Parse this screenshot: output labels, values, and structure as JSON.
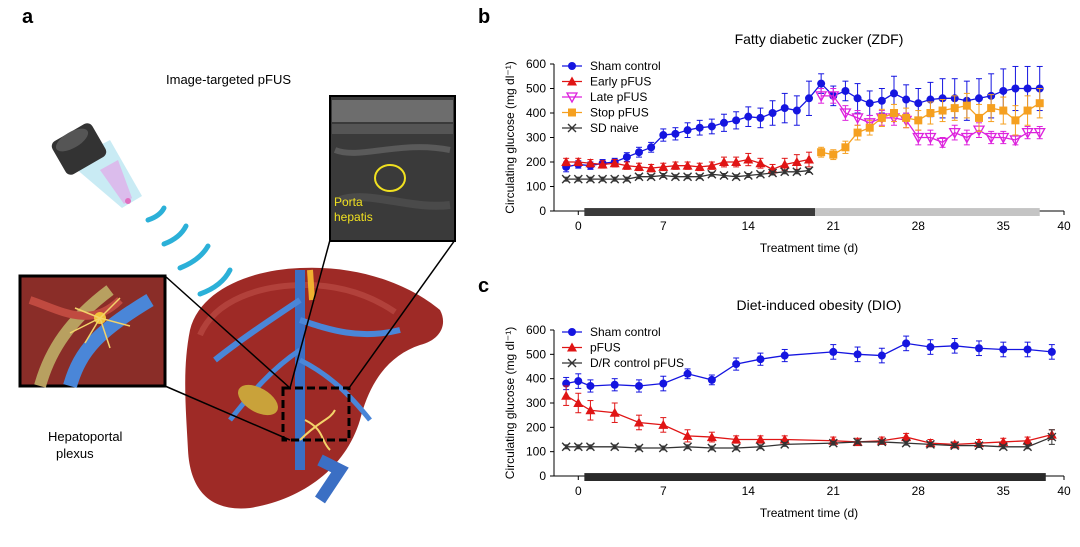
{
  "panel_a": {
    "letter": "a",
    "caption": "Image-targeted pFUS",
    "us_label_line1": "Porta",
    "us_label_line2": "hepatis",
    "plexus_line1": "Hepatoportal",
    "plexus_line2": "plexus"
  },
  "chart_data": [
    {
      "panel": "b",
      "type": "line",
      "title": "Fatty diabetic zucker (ZDF)",
      "xlabel": "Treatment time (d)",
      "ylabel": "Circulating glucose (mg dl⁻¹)",
      "xlim": [
        -2,
        40
      ],
      "ylim": [
        0,
        600
      ],
      "xticks": [
        0,
        7,
        14,
        21,
        28,
        35,
        40
      ],
      "yticks": [
        0,
        100,
        200,
        300,
        400,
        500,
        600
      ],
      "legend_position": "top-left",
      "treatment_bars": [
        {
          "x0": 0.5,
          "x1": 19.5,
          "color": "#3a3a3a"
        },
        {
          "x0": 19.5,
          "x1": 38,
          "color": "#c4c4c4"
        }
      ],
      "series": [
        {
          "name": "Sham control",
          "color": "#1515e0",
          "marker": "circle",
          "x": [
            -1,
            0,
            1,
            2,
            3,
            4,
            5,
            6,
            7,
            8,
            9,
            10,
            11,
            12,
            13,
            14,
            15,
            16,
            17,
            18,
            19,
            20,
            21,
            22,
            23,
            24,
            25,
            26,
            27,
            28,
            29,
            30,
            31,
            32,
            33,
            34,
            35,
            36,
            37,
            38
          ],
          "y": [
            180,
            190,
            185,
            195,
            200,
            220,
            240,
            260,
            310,
            315,
            330,
            340,
            345,
            360,
            370,
            385,
            380,
            400,
            420,
            410,
            460,
            520,
            470,
            490,
            460,
            440,
            450,
            480,
            455,
            440,
            455,
            460,
            460,
            450,
            460,
            470,
            490,
            500,
            500,
            500
          ],
          "err": [
            20,
            15,
            15,
            15,
            15,
            18,
            20,
            20,
            25,
            25,
            30,
            30,
            30,
            35,
            35,
            40,
            40,
            50,
            60,
            60,
            70,
            40,
            40,
            40,
            60,
            50,
            50,
            70,
            60,
            60,
            70,
            80,
            80,
            80,
            80,
            90,
            90,
            90,
            90,
            90
          ]
        },
        {
          "name": "Early pFUS",
          "color": "#e01515",
          "marker": "triangle-up",
          "x": [
            -1,
            0,
            1,
            2,
            3,
            4,
            5,
            6,
            7,
            8,
            9,
            10,
            11,
            12,
            13,
            14,
            15,
            16,
            17,
            18,
            19
          ],
          "y": [
            200,
            200,
            195,
            190,
            195,
            185,
            180,
            175,
            180,
            185,
            185,
            180,
            185,
            200,
            200,
            210,
            195,
            170,
            190,
            200,
            210
          ],
          "err": [
            15,
            15,
            15,
            15,
            15,
            15,
            15,
            15,
            15,
            15,
            15,
            15,
            15,
            20,
            20,
            25,
            20,
            20,
            25,
            30,
            30
          ]
        },
        {
          "name": "Late pFUS",
          "color": "#dd22dd",
          "marker": "triangle-down",
          "x": [
            20,
            21,
            22,
            23,
            24,
            25,
            26,
            27,
            28,
            29,
            30,
            31,
            32,
            33,
            34,
            35,
            36,
            37,
            38
          ],
          "y": [
            470,
            470,
            400,
            380,
            360,
            380,
            380,
            370,
            300,
            300,
            280,
            320,
            300,
            330,
            300,
            300,
            290,
            320,
            320
          ],
          "err": [
            30,
            30,
            30,
            30,
            30,
            30,
            30,
            30,
            30,
            30,
            20,
            30,
            30,
            30,
            25,
            25,
            20,
            25,
            25
          ]
        },
        {
          "name": "Stop pFUS",
          "color": "#f5a020",
          "marker": "square",
          "x": [
            20,
            21,
            22,
            23,
            24,
            25,
            26,
            27,
            28,
            29,
            30,
            31,
            32,
            33,
            34,
            35,
            36,
            37,
            38
          ],
          "y": [
            240,
            230,
            260,
            320,
            340,
            380,
            400,
            380,
            370,
            400,
            410,
            420,
            430,
            380,
            420,
            410,
            370,
            410,
            440
          ],
          "err": [
            20,
            20,
            25,
            30,
            30,
            35,
            35,
            40,
            40,
            45,
            45,
            50,
            50,
            55,
            55,
            55,
            60,
            60,
            60
          ]
        },
        {
          "name": "SD naive",
          "color": "#333333",
          "marker": "x",
          "x": [
            -1,
            0,
            1,
            2,
            3,
            4,
            5,
            6,
            7,
            8,
            9,
            10,
            11,
            12,
            13,
            14,
            15,
            16,
            17,
            18,
            19
          ],
          "y": [
            130,
            130,
            130,
            130,
            130,
            130,
            140,
            140,
            145,
            140,
            140,
            140,
            150,
            145,
            140,
            145,
            150,
            155,
            160,
            160,
            165
          ],
          "err": [
            8,
            8,
            8,
            8,
            8,
            8,
            8,
            8,
            8,
            8,
            8,
            8,
            8,
            8,
            8,
            8,
            8,
            8,
            8,
            8,
            8
          ]
        }
      ]
    },
    {
      "panel": "c",
      "type": "line",
      "title": "Diet-induced obesity (DIO)",
      "xlabel": "Treatment time (d)",
      "ylabel": "Circulating glucose (mg dl⁻¹)",
      "xlim": [
        -2,
        40
      ],
      "ylim": [
        0,
        600
      ],
      "xticks": [
        0,
        7,
        14,
        21,
        28,
        35,
        40
      ],
      "yticks": [
        0,
        100,
        200,
        300,
        400,
        500,
        600
      ],
      "legend_position": "top-left",
      "treatment_bars": [
        {
          "x0": 0.5,
          "x1": 38.5,
          "color": "#2a2a2a"
        }
      ],
      "series": [
        {
          "name": "Sham control",
          "color": "#1515e0",
          "marker": "circle",
          "x": [
            -1,
            0,
            1,
            3,
            5,
            7,
            9,
            11,
            13,
            15,
            17,
            21,
            23,
            25,
            27,
            29,
            31,
            33,
            35,
            37,
            39
          ],
          "y": [
            380,
            390,
            370,
            375,
            370,
            380,
            420,
            395,
            460,
            480,
            495,
            510,
            500,
            495,
            545,
            530,
            535,
            525,
            520,
            520,
            510
          ],
          "err": [
            25,
            30,
            25,
            25,
            25,
            30,
            20,
            20,
            25,
            25,
            25,
            30,
            30,
            30,
            30,
            30,
            30,
            30,
            30,
            30,
            30
          ]
        },
        {
          "name": "pFUS",
          "color": "#e01515",
          "marker": "triangle-up",
          "x": [
            -1,
            0,
            1,
            3,
            5,
            7,
            9,
            11,
            13,
            15,
            17,
            21,
            23,
            25,
            27,
            29,
            31,
            33,
            35,
            37,
            39
          ],
          "y": [
            330,
            300,
            270,
            260,
            220,
            210,
            165,
            160,
            150,
            150,
            150,
            145,
            140,
            145,
            160,
            135,
            130,
            135,
            140,
            145,
            170
          ],
          "err": [
            40,
            40,
            40,
            40,
            30,
            30,
            25,
            20,
            15,
            15,
            15,
            15,
            15,
            15,
            15,
            15,
            10,
            15,
            15,
            15,
            20
          ]
        },
        {
          "name": "D/R control pFUS",
          "color": "#333333",
          "marker": "x",
          "x": [
            -1,
            0,
            1,
            3,
            5,
            7,
            9,
            11,
            13,
            15,
            17,
            21,
            23,
            25,
            27,
            29,
            31,
            33,
            35,
            37,
            39
          ],
          "y": [
            120,
            120,
            120,
            120,
            115,
            115,
            120,
            115,
            115,
            120,
            130,
            135,
            140,
            140,
            135,
            130,
            125,
            125,
            120,
            120,
            160
          ],
          "err": [
            8,
            8,
            8,
            8,
            8,
            8,
            8,
            8,
            8,
            8,
            8,
            8,
            8,
            8,
            8,
            8,
            8,
            8,
            8,
            8,
            30
          ]
        }
      ]
    }
  ]
}
